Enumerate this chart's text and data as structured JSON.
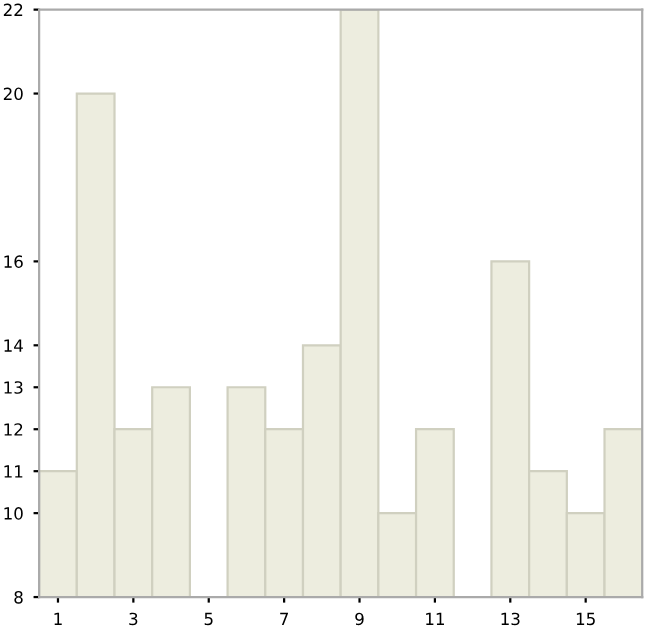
{
  "chart_data": {
    "type": "bar",
    "categories": [
      "1",
      null,
      "3",
      null,
      "5",
      null,
      "7",
      null,
      "9",
      null,
      "11",
      null,
      "13",
      null,
      "15",
      null
    ],
    "values": [
      11,
      20,
      12,
      13,
      8,
      13,
      12,
      14,
      22,
      10,
      12,
      8,
      16,
      11,
      10,
      12
    ],
    "color": "#ededdf",
    "ylim": [
      8,
      22
    ],
    "yticks": [
      8,
      10,
      11,
      12,
      13,
      14,
      16,
      20,
      22
    ],
    "grid": false,
    "legend": false
  }
}
